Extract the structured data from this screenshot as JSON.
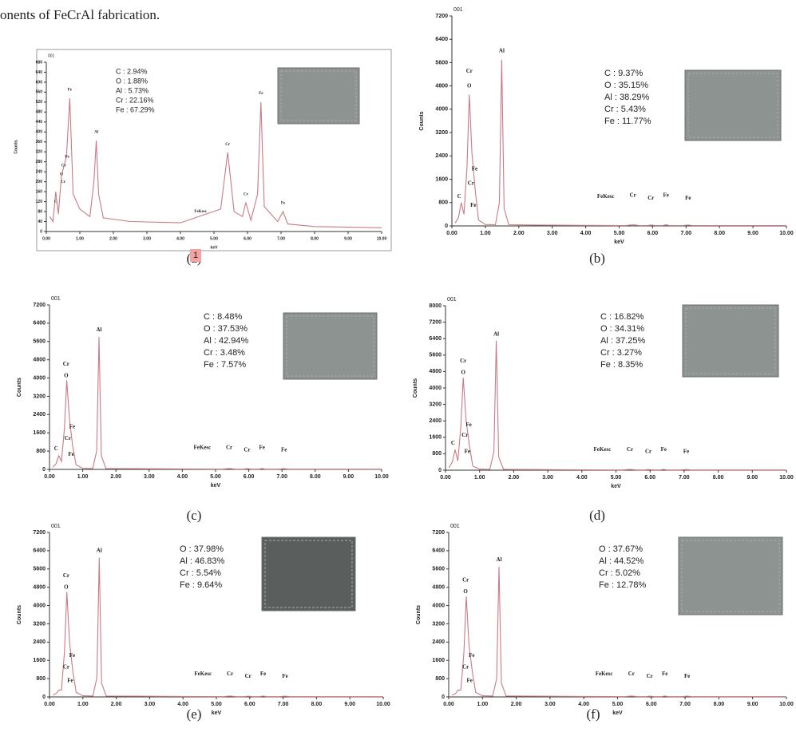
{
  "text_line": "onents of FeCrAl fabrication.",
  "badge": "1",
  "chart_data": [
    {
      "type": "line",
      "header": "001",
      "caption": "(a)",
      "xlabel": "keV",
      "ylabel": "Counts",
      "color": "#c97a82",
      "frame": true,
      "x": [
        0.1,
        0.2,
        0.28,
        0.36,
        0.45,
        0.52,
        0.6,
        0.7,
        0.8,
        1.0,
        1.3,
        1.42,
        1.49,
        1.56,
        1.7,
        2.5,
        4.0,
        5.2,
        5.41,
        5.6,
        5.85,
        5.95,
        6.1,
        6.3,
        6.4,
        6.5,
        6.9,
        7.06,
        7.2,
        8.0,
        10.0
      ],
      "values": [
        60,
        40,
        160,
        70,
        220,
        260,
        300,
        535,
        150,
        90,
        60,
        200,
        365,
        150,
        55,
        40,
        35,
        90,
        318,
        80,
        60,
        117,
        45,
        150,
        520,
        100,
        40,
        80,
        30,
        20,
        15
      ],
      "xlim": [
        0,
        10
      ],
      "ylim": [
        0,
        680
      ],
      "xticks": [
        {
          "value": 0,
          "label": "0.00"
        },
        {
          "value": 1,
          "label": "1.00"
        },
        {
          "value": 2,
          "label": "2.00"
        },
        {
          "value": 3,
          "label": "3.00"
        },
        {
          "value": 4,
          "label": "4.00"
        },
        {
          "value": 5,
          "label": "5.00"
        },
        {
          "value": 6,
          "label": "6.00"
        },
        {
          "value": 7,
          "label": "7.00"
        },
        {
          "value": 8,
          "label": "8.00"
        },
        {
          "value": 9,
          "label": "9.00"
        },
        {
          "value": 10,
          "label": "10.00"
        }
      ],
      "yticks": [
        0,
        40,
        80,
        120,
        160,
        200,
        240,
        280,
        320,
        360,
        400,
        440,
        480,
        520,
        560,
        600,
        640,
        680
      ],
      "composition": [
        "C : 2.94%",
        "O : 1.88%",
        "Al : 5.73%",
        "Cr : 22.16%",
        "Fe : 67.29%"
      ],
      "peak_labels": [
        {
          "label": "C",
          "x": 0.28,
          "y": 120
        },
        {
          "label": "Fe",
          "x": 0.62,
          "y": 300
        },
        {
          "label": "Cr",
          "x": 0.52,
          "y": 265
        },
        {
          "label": "O",
          "x": 0.45,
          "y": 230
        },
        {
          "label": "Cr",
          "x": 0.5,
          "y": 200
        },
        {
          "label": "Fe",
          "x": 0.7,
          "y": 570
        },
        {
          "label": "Al",
          "x": 1.49,
          "y": 400
        },
        {
          "label": "FeKesc",
          "x": 4.6,
          "y": 80
        },
        {
          "label": "Cr",
          "x": 5.41,
          "y": 350
        },
        {
          "label": "Cr",
          "x": 5.95,
          "y": 150
        },
        {
          "label": "Fe",
          "x": 6.4,
          "y": 555
        },
        {
          "label": "Fe",
          "x": 7.06,
          "y": 115
        }
      ]
    },
    {
      "type": "line",
      "header": "001",
      "caption": "(b)",
      "xlabel": "keV",
      "ylabel": "Counts",
      "color": "#c97a82",
      "frame": false,
      "x": [
        0.1,
        0.2,
        0.28,
        0.36,
        0.45,
        0.52,
        0.6,
        0.7,
        0.8,
        1.0,
        1.3,
        1.42,
        1.49,
        1.56,
        1.7,
        2.5,
        4.0,
        5.2,
        5.41,
        5.6,
        5.85,
        5.95,
        6.1,
        6.3,
        6.4,
        6.5,
        6.9,
        7.06,
        7.2,
        8.0,
        10.0
      ],
      "values": [
        100,
        300,
        800,
        400,
        2000,
        4500,
        2500,
        1200,
        200,
        50,
        40,
        800,
        5700,
        600,
        40,
        30,
        20,
        10,
        40,
        10,
        10,
        30,
        10,
        10,
        40,
        10,
        10,
        30,
        10,
        10,
        10
      ],
      "xlim": [
        0,
        10
      ],
      "ylim": [
        0,
        7200
      ],
      "xticks": [
        {
          "value": 0,
          "label": "0.00"
        },
        {
          "value": 1,
          "label": "1.00"
        },
        {
          "value": 2,
          "label": "2.00"
        },
        {
          "value": 3,
          "label": "3.00"
        },
        {
          "value": 4,
          "label": "4.00"
        },
        {
          "value": 5,
          "label": "5.00"
        },
        {
          "value": 6,
          "label": "6.00"
        },
        {
          "value": 7,
          "label": "7.00"
        },
        {
          "value": 8,
          "label": "8.00"
        },
        {
          "value": 9,
          "label": "9.00"
        },
        {
          "value": 10,
          "label": "10.00"
        }
      ],
      "yticks": [
        0,
        800,
        1600,
        2400,
        3200,
        4000,
        4800,
        5600,
        6400,
        7200
      ],
      "composition": [
        "C : 9.37%",
        "O : 35.15%",
        "Al : 38.29%",
        "Cr : 5.43%",
        "Fe : 11.77%"
      ],
      "peak_labels": [
        {
          "label": "Al",
          "x": 1.49,
          "y": 6000
        },
        {
          "label": "Cr",
          "x": 0.52,
          "y": 5300
        },
        {
          "label": "O",
          "x": 0.52,
          "y": 4800
        },
        {
          "label": "C",
          "x": 0.22,
          "y": 1000
        },
        {
          "label": "Cr",
          "x": 0.57,
          "y": 1450
        },
        {
          "label": "Fe",
          "x": 0.68,
          "y": 1950
        },
        {
          "label": "Fe",
          "x": 0.64,
          "y": 700
        },
        {
          "label": "FeKesc",
          "x": 4.6,
          "y": 1000
        },
        {
          "label": "Cr",
          "x": 5.41,
          "y": 1050
        },
        {
          "label": "Cr",
          "x": 5.95,
          "y": 950
        },
        {
          "label": "Fe",
          "x": 6.4,
          "y": 1050
        },
        {
          "label": "Fe",
          "x": 7.06,
          "y": 950
        }
      ]
    },
    {
      "type": "line",
      "header": "001",
      "caption": "(c)",
      "xlabel": "keV",
      "ylabel": "Counts",
      "color": "#c97a82",
      "frame": false,
      "x": [
        0.1,
        0.2,
        0.28,
        0.36,
        0.45,
        0.52,
        0.6,
        0.7,
        0.8,
        1.0,
        1.3,
        1.42,
        1.49,
        1.56,
        1.7,
        2.5,
        4.0,
        5.2,
        5.41,
        5.6,
        5.85,
        5.95,
        6.1,
        6.3,
        6.4,
        6.5,
        6.9,
        7.06,
        7.2,
        8.0,
        10.0
      ],
      "values": [
        100,
        250,
        600,
        350,
        1800,
        3900,
        2200,
        1000,
        200,
        50,
        40,
        800,
        5800,
        600,
        40,
        30,
        20,
        10,
        40,
        10,
        10,
        30,
        10,
        10,
        40,
        10,
        10,
        30,
        10,
        10,
        10
      ],
      "xlim": [
        0,
        10
      ],
      "ylim": [
        0,
        7200
      ],
      "xticks": [
        {
          "value": 0,
          "label": "0.00"
        },
        {
          "value": 1,
          "label": "1.00"
        },
        {
          "value": 2,
          "label": "2.00"
        },
        {
          "value": 3,
          "label": "3.00"
        },
        {
          "value": 4,
          "label": "4.00"
        },
        {
          "value": 5,
          "label": "5.00"
        },
        {
          "value": 6,
          "label": "6.00"
        },
        {
          "value": 7,
          "label": "7.00"
        },
        {
          "value": 8,
          "label": "8.00"
        },
        {
          "value": 9,
          "label": "9.00"
        },
        {
          "value": 10,
          "label": "10.00"
        }
      ],
      "yticks": [
        0,
        800,
        1600,
        2400,
        3200,
        4000,
        4800,
        5600,
        6400,
        7200
      ],
      "composition": [
        "C : 8.48%",
        "O : 37.53%",
        "Al : 42.94%",
        "Cr : 3.48%",
        "Fe : 7.57%"
      ],
      "peak_labels": [
        {
          "label": "Al",
          "x": 1.49,
          "y": 6100
        },
        {
          "label": "Cr",
          "x": 0.5,
          "y": 4600
        },
        {
          "label": "O",
          "x": 0.5,
          "y": 4100
        },
        {
          "label": "C",
          "x": 0.2,
          "y": 900
        },
        {
          "label": "Cr",
          "x": 0.55,
          "y": 1350
        },
        {
          "label": "Fe",
          "x": 0.68,
          "y": 1850
        },
        {
          "label": "Fe",
          "x": 0.65,
          "y": 650
        },
        {
          "label": "FeKesc",
          "x": 4.6,
          "y": 950
        },
        {
          "label": "Cr",
          "x": 5.41,
          "y": 950
        },
        {
          "label": "Cr",
          "x": 5.95,
          "y": 850
        },
        {
          "label": "Fe",
          "x": 6.4,
          "y": 950
        },
        {
          "label": "Fe",
          "x": 7.06,
          "y": 850
        }
      ]
    },
    {
      "type": "line",
      "header": "001",
      "caption": "(d)",
      "xlabel": "keV",
      "ylabel": "Counts",
      "color": "#c97a82",
      "frame": false,
      "x": [
        0.1,
        0.2,
        0.28,
        0.36,
        0.45,
        0.52,
        0.6,
        0.7,
        0.8,
        1.0,
        1.3,
        1.42,
        1.49,
        1.56,
        1.7,
        2.5,
        4.0,
        5.2,
        5.41,
        5.6,
        5.85,
        5.95,
        6.1,
        6.3,
        6.4,
        6.5,
        6.9,
        7.06,
        7.2,
        8.0,
        10.0
      ],
      "values": [
        120,
        400,
        1000,
        450,
        2100,
        4500,
        2500,
        1200,
        200,
        50,
        40,
        900,
        6300,
        650,
        40,
        30,
        20,
        10,
        40,
        10,
        10,
        30,
        10,
        10,
        40,
        10,
        10,
        30,
        10,
        10,
        10
      ],
      "xlim": [
        0,
        10
      ],
      "ylim": [
        0,
        8000
      ],
      "xticks": [
        {
          "value": 0,
          "label": "0.00"
        },
        {
          "value": 1,
          "label": "1.00"
        },
        {
          "value": 2,
          "label": "2.00"
        },
        {
          "value": 3,
          "label": "3.00"
        },
        {
          "value": 4,
          "label": "4.00"
        },
        {
          "value": 5,
          "label": "5.00"
        },
        {
          "value": 6,
          "label": "6.00"
        },
        {
          "value": 7,
          "label": "7.00"
        },
        {
          "value": 8,
          "label": "8.00"
        },
        {
          "value": 9,
          "label": "9.00"
        },
        {
          "value": 10,
          "label": "10.00"
        }
      ],
      "yticks": [
        0,
        800,
        1600,
        2400,
        3200,
        4000,
        4800,
        5600,
        6400,
        7200,
        8000
      ],
      "composition": [
        "C : 16.82%",
        "O : 34.31%",
        "Al : 37.25%",
        "Cr : 3.27%",
        "Fe : 8.35%"
      ],
      "peak_labels": [
        {
          "label": "Al",
          "x": 1.49,
          "y": 6600
        },
        {
          "label": "Cr",
          "x": 0.52,
          "y": 5300
        },
        {
          "label": "O",
          "x": 0.52,
          "y": 4750
        },
        {
          "label": "C",
          "x": 0.22,
          "y": 1300
        },
        {
          "label": "Cr",
          "x": 0.57,
          "y": 1700
        },
        {
          "label": "Fe",
          "x": 0.68,
          "y": 2200
        },
        {
          "label": "Fe",
          "x": 0.64,
          "y": 900
        },
        {
          "label": "FeKesc",
          "x": 4.6,
          "y": 1000
        },
        {
          "label": "Cr",
          "x": 5.41,
          "y": 1000
        },
        {
          "label": "Cr",
          "x": 5.95,
          "y": 900
        },
        {
          "label": "Fe",
          "x": 6.4,
          "y": 1000
        },
        {
          "label": "Fe",
          "x": 7.06,
          "y": 900
        }
      ]
    },
    {
      "type": "line",
      "header": "001",
      "caption": "(e)",
      "xlabel": "keV",
      "ylabel": "Counts",
      "color": "#c97a82",
      "frame": false,
      "x": [
        0.1,
        0.2,
        0.28,
        0.36,
        0.45,
        0.52,
        0.6,
        0.7,
        0.8,
        1.0,
        1.3,
        1.42,
        1.49,
        1.56,
        1.7,
        2.5,
        4.0,
        5.2,
        5.41,
        5.6,
        5.85,
        5.95,
        6.1,
        6.3,
        6.4,
        6.5,
        6.9,
        7.06,
        7.2,
        8.0,
        10.0
      ],
      "values": [
        80,
        150,
        300,
        300,
        2000,
        4600,
        2400,
        1100,
        200,
        50,
        40,
        850,
        6100,
        600,
        40,
        30,
        20,
        10,
        40,
        10,
        10,
        30,
        10,
        10,
        40,
        10,
        10,
        30,
        10,
        10,
        10
      ],
      "xlim": [
        0,
        10
      ],
      "ylim": [
        0,
        7200
      ],
      "xticks": [
        {
          "value": 0,
          "label": "0.00"
        },
        {
          "value": 1,
          "label": "1.00"
        },
        {
          "value": 2,
          "label": "2.00"
        },
        {
          "value": 3,
          "label": "3.00"
        },
        {
          "value": 4,
          "label": "4.00"
        },
        {
          "value": 5,
          "label": "5.00"
        },
        {
          "value": 6,
          "label": "6.00"
        },
        {
          "value": 7,
          "label": "7.00"
        },
        {
          "value": 8,
          "label": "8.00"
        },
        {
          "value": 9,
          "label": "9.00"
        },
        {
          "value": 10,
          "label": "10.00"
        }
      ],
      "yticks": [
        0,
        800,
        1600,
        2400,
        3200,
        4000,
        4800,
        5600,
        6400,
        7200
      ],
      "composition": [
        "O : 37.98%",
        "Al : 46.83%",
        "Cr : 5.54%",
        "Fe : 9.64%"
      ],
      "peak_labels": [
        {
          "label": "Al",
          "x": 1.49,
          "y": 6400
        },
        {
          "label": "Cr",
          "x": 0.5,
          "y": 5300
        },
        {
          "label": "O",
          "x": 0.5,
          "y": 4800
        },
        {
          "label": "Cr",
          "x": 0.5,
          "y": 1300
        },
        {
          "label": "Fe",
          "x": 0.68,
          "y": 1800
        },
        {
          "label": "Fe",
          "x": 0.62,
          "y": 700
        },
        {
          "label": "FeKesc",
          "x": 4.6,
          "y": 1000
        },
        {
          "label": "Cr",
          "x": 5.41,
          "y": 1000
        },
        {
          "label": "Cr",
          "x": 5.95,
          "y": 900
        },
        {
          "label": "Fe",
          "x": 6.4,
          "y": 1000
        },
        {
          "label": "Fe",
          "x": 7.06,
          "y": 900
        }
      ]
    },
    {
      "type": "line",
      "header": "001",
      "caption": "(f)",
      "xlabel": "keV",
      "ylabel": "Counts",
      "color": "#c97a82",
      "frame": false,
      "x": [
        0.1,
        0.2,
        0.28,
        0.36,
        0.45,
        0.52,
        0.6,
        0.7,
        0.8,
        1.0,
        1.3,
        1.42,
        1.49,
        1.56,
        1.7,
        2.5,
        4.0,
        5.2,
        5.41,
        5.6,
        5.85,
        5.95,
        6.1,
        6.3,
        6.4,
        6.5,
        6.9,
        7.06,
        7.2,
        8.0,
        10.0
      ],
      "values": [
        80,
        150,
        300,
        300,
        1900,
        4400,
        2300,
        1100,
        200,
        50,
        40,
        800,
        5700,
        600,
        40,
        30,
        20,
        10,
        40,
        10,
        10,
        30,
        10,
        10,
        40,
        10,
        10,
        30,
        10,
        10,
        10
      ],
      "xlim": [
        0,
        10
      ],
      "ylim": [
        0,
        7200
      ],
      "xticks": [
        {
          "value": 0,
          "label": "0.00"
        },
        {
          "value": 1,
          "label": "1.00"
        },
        {
          "value": 2,
          "label": "2.00"
        },
        {
          "value": 3,
          "label": "3.00"
        },
        {
          "value": 4,
          "label": "4.00"
        },
        {
          "value": 5,
          "label": "5.00"
        },
        {
          "value": 6,
          "label": "6.00"
        },
        {
          "value": 7,
          "label": "7.00"
        },
        {
          "value": 8,
          "label": "8.00"
        },
        {
          "value": 9,
          "label": "9.00"
        },
        {
          "value": 10,
          "label": "10.00"
        }
      ],
      "yticks": [
        0,
        800,
        1600,
        2400,
        3200,
        4000,
        4800,
        5600,
        6400,
        7200
      ],
      "composition": [
        "O : 37.67%",
        "Al : 44.52%",
        "Cr : 5.02%",
        "Fe : 12.78%"
      ],
      "peak_labels": [
        {
          "label": "Al",
          "x": 1.49,
          "y": 6000
        },
        {
          "label": "Cr",
          "x": 0.5,
          "y": 5100
        },
        {
          "label": "O",
          "x": 0.5,
          "y": 4600
        },
        {
          "label": "Cr",
          "x": 0.5,
          "y": 1300
        },
        {
          "label": "Fe",
          "x": 0.68,
          "y": 1800
        },
        {
          "label": "Fe",
          "x": 0.62,
          "y": 700
        },
        {
          "label": "FeKesc",
          "x": 4.6,
          "y": 1000
        },
        {
          "label": "Cr",
          "x": 5.41,
          "y": 1000
        },
        {
          "label": "Cr",
          "x": 5.95,
          "y": 900
        },
        {
          "label": "Fe",
          "x": 6.4,
          "y": 1000
        },
        {
          "label": "Fe",
          "x": 7.06,
          "y": 900
        }
      ]
    }
  ]
}
